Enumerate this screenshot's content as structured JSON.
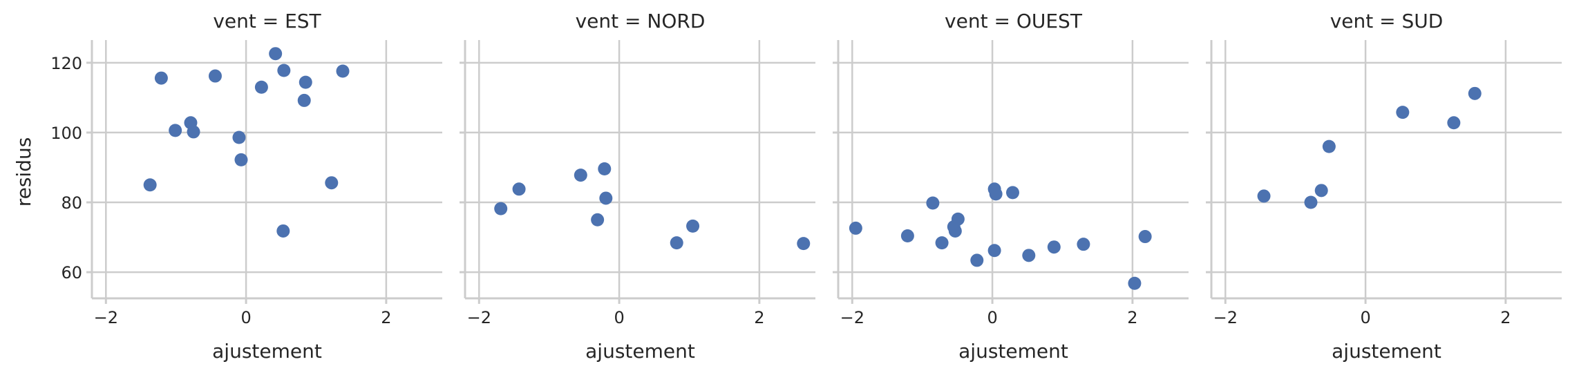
{
  "chart_data": {
    "type": "scatter",
    "ylabel": "residus",
    "xlabel": "ajustement",
    "xlim": [
      -2.2,
      2.8
    ],
    "ylim": [
      52.5,
      126.5
    ],
    "xticks": [
      -2,
      0,
      2
    ],
    "yticks": [
      60,
      80,
      100,
      120
    ],
    "grid": true,
    "color": "#4c72b0",
    "facets": [
      {
        "title": "vent = EST",
        "points": [
          {
            "x": -1.37,
            "y": 85.0
          },
          {
            "x": -1.21,
            "y": 115.6
          },
          {
            "x": -1.01,
            "y": 100.6
          },
          {
            "x": -0.79,
            "y": 102.8
          },
          {
            "x": -0.75,
            "y": 100.2
          },
          {
            "x": -0.44,
            "y": 116.2
          },
          {
            "x": -0.1,
            "y": 98.6
          },
          {
            "x": -0.07,
            "y": 92.2
          },
          {
            "x": 0.22,
            "y": 113.0
          },
          {
            "x": 0.42,
            "y": 122.6
          },
          {
            "x": 0.53,
            "y": 71.8
          },
          {
            "x": 0.54,
            "y": 117.8
          },
          {
            "x": 0.83,
            "y": 109.2
          },
          {
            "x": 0.85,
            "y": 114.4
          },
          {
            "x": 1.22,
            "y": 85.6
          },
          {
            "x": 1.38,
            "y": 117.6
          }
        ]
      },
      {
        "title": "vent = NORD",
        "points": [
          {
            "x": -1.69,
            "y": 78.2
          },
          {
            "x": -1.43,
            "y": 83.8
          },
          {
            "x": -0.55,
            "y": 87.8
          },
          {
            "x": -0.31,
            "y": 75.0
          },
          {
            "x": -0.21,
            "y": 89.6
          },
          {
            "x": -0.19,
            "y": 81.2
          },
          {
            "x": 0.82,
            "y": 68.4
          },
          {
            "x": 1.05,
            "y": 73.2
          },
          {
            "x": 2.63,
            "y": 68.2
          }
        ]
      },
      {
        "title": "vent = OUEST",
        "points": [
          {
            "x": -1.95,
            "y": 72.6
          },
          {
            "x": -1.21,
            "y": 70.4
          },
          {
            "x": -0.85,
            "y": 79.8
          },
          {
            "x": -0.72,
            "y": 68.4
          },
          {
            "x": -0.55,
            "y": 73.0
          },
          {
            "x": -0.53,
            "y": 71.8
          },
          {
            "x": -0.49,
            "y": 75.2
          },
          {
            "x": -0.22,
            "y": 63.4
          },
          {
            "x": 0.03,
            "y": 66.2
          },
          {
            "x": 0.03,
            "y": 83.8
          },
          {
            "x": 0.05,
            "y": 82.4
          },
          {
            "x": 0.29,
            "y": 82.8
          },
          {
            "x": 0.52,
            "y": 64.8
          },
          {
            "x": 0.88,
            "y": 67.2
          },
          {
            "x": 1.3,
            "y": 68.0
          },
          {
            "x": 2.03,
            "y": 56.8
          },
          {
            "x": 2.18,
            "y": 70.2
          }
        ]
      },
      {
        "title": "vent = SUD",
        "points": [
          {
            "x": -1.45,
            "y": 81.8
          },
          {
            "x": -0.78,
            "y": 80.0
          },
          {
            "x": -0.63,
            "y": 83.4
          },
          {
            "x": -0.52,
            "y": 96.0
          },
          {
            "x": 0.53,
            "y": 105.8
          },
          {
            "x": 1.26,
            "y": 102.8
          },
          {
            "x": 1.56,
            "y": 111.2
          }
        ]
      }
    ]
  }
}
